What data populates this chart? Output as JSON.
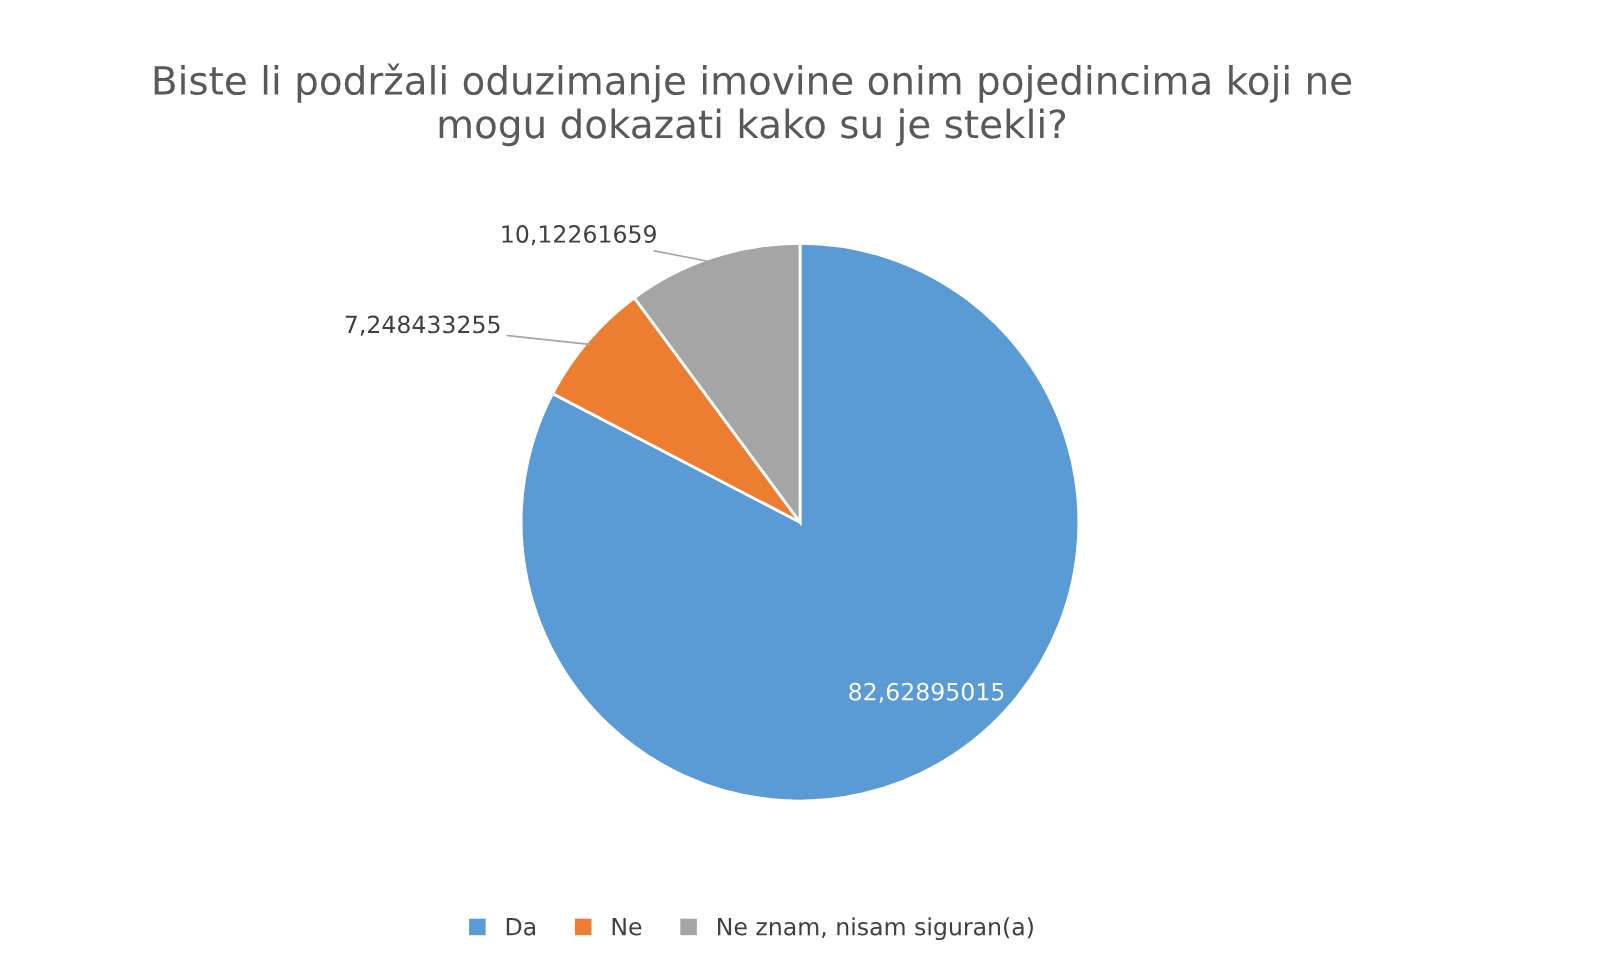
{
  "chart_data": {
    "type": "pie",
    "title": "Biste li podržali oduzimanje imovine onim pojedincima koji ne\nmogu dokazati kako su je stekli?",
    "categories": [
      "Da",
      "Ne",
      "Ne znam, nisam siguran(a)"
    ],
    "values": [
      82.62895015,
      7.248433255,
      10.12261659
    ],
    "value_labels": [
      "82,62895015",
      "7,248433255",
      "10,12261659"
    ],
    "colors": [
      "#5b9bd5",
      "#ed7d31",
      "#a5a5a5"
    ],
    "legend": "bottom"
  }
}
